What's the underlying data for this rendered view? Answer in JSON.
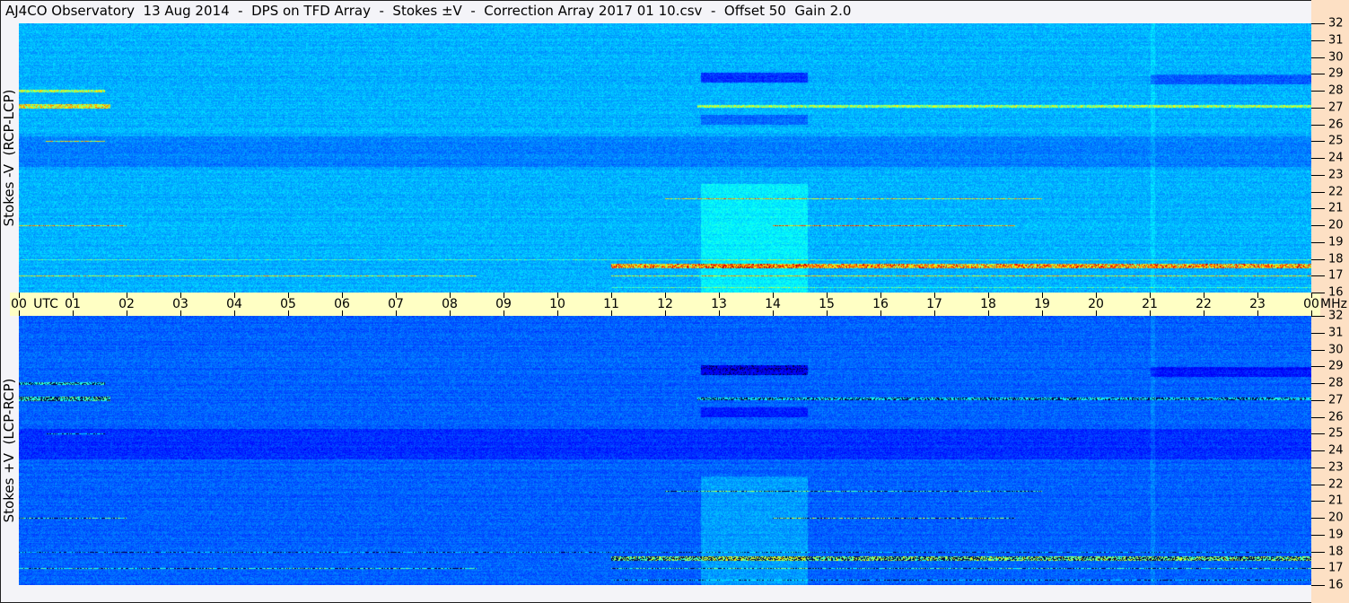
{
  "title": "AJ4CO Observatory  13 Aug 2014  -  DPS on TFD Array  -  Stokes ±V  -  Correction Array 2017 01 10.csv  -  Offset 50  Gain 2.0",
  "chart_data": [
    {
      "type": "heatmap",
      "panel_label": "Stokes -V  (RCP-LCP)",
      "x_ticks": [
        "00",
        "01",
        "02",
        "03",
        "04",
        "05",
        "06",
        "07",
        "08",
        "09",
        "10",
        "11",
        "12",
        "13",
        "14",
        "15",
        "16",
        "17",
        "18",
        "19",
        "20",
        "21",
        "22",
        "23",
        "00"
      ],
      "x_unit": "UTC",
      "y_ticks": [
        32,
        31,
        30,
        29,
        28,
        27,
        26,
        25,
        24,
        23,
        22,
        21,
        20,
        19,
        18,
        17,
        16
      ],
      "y_unit": "MHz",
      "xlim": [
        0,
        24
      ],
      "ylim": [
        16,
        32
      ],
      "colormap": "jet"
    },
    {
      "type": "heatmap",
      "panel_label": "Stokes +V  (LCP-RCP)",
      "x_ticks": [
        "00",
        "01",
        "02",
        "03",
        "04",
        "05",
        "06",
        "07",
        "08",
        "09",
        "10",
        "11",
        "12",
        "13",
        "14",
        "15",
        "16",
        "17",
        "18",
        "19",
        "20",
        "21",
        "22",
        "23",
        "00"
      ],
      "x_unit": "UTC",
      "y_ticks": [
        32,
        31,
        30,
        29,
        28,
        27,
        26,
        25,
        24,
        23,
        22,
        21,
        20,
        19,
        18,
        17,
        16
      ],
      "y_unit": "MHz",
      "xlim": [
        0,
        24
      ],
      "ylim": [
        16,
        32
      ],
      "colormap": "jet"
    }
  ],
  "colors": {
    "axis_strip": "#ffffc4",
    "freq_axis": "#fde0c4",
    "background": "#f4f4f8"
  }
}
